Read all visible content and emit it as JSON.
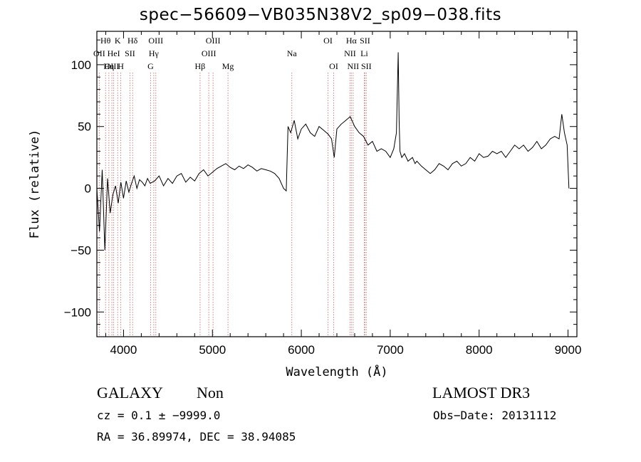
{
  "chart_data": {
    "type": "line",
    "title": "spec−56609−VB035N38V2_sp09−038.fits",
    "xlabel": "Wavelength (Å)",
    "ylabel": "Flux (relative)",
    "xlim": [
      3700,
      9100
    ],
    "ylim": [
      -120,
      127
    ],
    "xticks": [
      4000,
      5000,
      6000,
      7000,
      8000,
      9000
    ],
    "yticks": [
      -100,
      -50,
      0,
      50,
      100
    ],
    "ytick_labels": [
      "−100",
      "−50",
      "0",
      "50",
      "100"
    ],
    "series": [
      {
        "name": "spectrum",
        "x": [
          3700,
          3730,
          3760,
          3790,
          3820,
          3850,
          3880,
          3910,
          3940,
          3970,
          4000,
          4030,
          4060,
          4090,
          4120,
          4150,
          4180,
          4210,
          4240,
          4270,
          4300,
          4350,
          4400,
          4450,
          4500,
          4550,
          4600,
          4650,
          4700,
          4750,
          4800,
          4850,
          4900,
          4950,
          5000,
          5050,
          5100,
          5150,
          5200,
          5250,
          5300,
          5350,
          5400,
          5450,
          5500,
          5550,
          5600,
          5650,
          5700,
          5750,
          5800,
          5830,
          5850,
          5880,
          5920,
          5960,
          6000,
          6050,
          6100,
          6150,
          6200,
          6250,
          6300,
          6340,
          6370,
          6400,
          6450,
          6500,
          6550,
          6600,
          6650,
          6700,
          6750,
          6800,
          6850,
          6900,
          6950,
          7000,
          7040,
          7070,
          7090,
          7100,
          7110,
          7130,
          7160,
          7200,
          7250,
          7280,
          7300,
          7350,
          7400,
          7450,
          7500,
          7550,
          7600,
          7650,
          7700,
          7750,
          7800,
          7850,
          7900,
          7950,
          8000,
          8050,
          8100,
          8150,
          8200,
          8250,
          8300,
          8350,
          8400,
          8450,
          8500,
          8550,
          8600,
          8650,
          8700,
          8750,
          8800,
          8850,
          8900,
          8930,
          8960,
          8990,
          9010
        ],
        "y": [
          0,
          -35,
          15,
          -50,
          8,
          -20,
          -5,
          2,
          -12,
          5,
          -8,
          6,
          -3,
          4,
          10,
          0,
          7,
          5,
          2,
          8,
          4,
          6,
          10,
          2,
          8,
          4,
          10,
          12,
          5,
          9,
          6,
          12,
          15,
          10,
          13,
          16,
          18,
          20,
          17,
          15,
          18,
          16,
          19,
          17,
          14,
          16,
          15,
          14,
          12,
          8,
          0,
          -2,
          50,
          45,
          55,
          40,
          48,
          52,
          45,
          42,
          50,
          47,
          44,
          40,
          25,
          48,
          52,
          55,
          58,
          50,
          45,
          42,
          35,
          38,
          30,
          32,
          30,
          25,
          32,
          45,
          110,
          55,
          30,
          25,
          28,
          22,
          25,
          20,
          22,
          18,
          15,
          12,
          15,
          20,
          18,
          15,
          20,
          22,
          18,
          20,
          25,
          22,
          28,
          25,
          26,
          30,
          28,
          30,
          25,
          30,
          35,
          32,
          35,
          30,
          33,
          38,
          32,
          35,
          40,
          42,
          40,
          60,
          45,
          35,
          0
        ]
      }
    ],
    "emission_lines": [
      {
        "label": "OII",
        "x": 3727,
        "row": 1
      },
      {
        "label": "Hθ",
        "x": 3798,
        "row": 0
      },
      {
        "label": "OIII",
        "x": 3869,
        "row": 2
      },
      {
        "label": "HeI",
        "x": 3889,
        "row": 1
      },
      {
        "label": "Hη",
        "x": 3835,
        "row": 2
      },
      {
        "label": "K",
        "x": 3934,
        "row": 0
      },
      {
        "label": "H",
        "x": 3969,
        "row": 2
      },
      {
        "label": "Hδ",
        "x": 4102,
        "row": 0
      },
      {
        "label": "SII",
        "x": 4072,
        "row": 1
      },
      {
        "label": "OIII",
        "x": 4363,
        "row": 0
      },
      {
        "label": "Hγ",
        "x": 4340,
        "row": 1
      },
      {
        "label": "G",
        "x": 4305,
        "row": 2
      },
      {
        "label": "OIII",
        "x": 5007,
        "row": 0
      },
      {
        "label": "OIII",
        "x": 4959,
        "row": 1
      },
      {
        "label": "Hβ",
        "x": 4861,
        "row": 2
      },
      {
        "label": "Mg",
        "x": 5175,
        "row": 2
      },
      {
        "label": "Na",
        "x": 5893,
        "row": 1
      },
      {
        "label": "OI",
        "x": 6300,
        "row": 0
      },
      {
        "label": "OI",
        "x": 6364,
        "row": 2
      },
      {
        "label": "Hα",
        "x": 6563,
        "row": 0
      },
      {
        "label": "NII",
        "x": 6548,
        "row": 1
      },
      {
        "label": "NII",
        "x": 6583,
        "row": 2
      },
      {
        "label": "SII",
        "x": 6716,
        "row": 0
      },
      {
        "label": "Li",
        "x": 6708,
        "row": 1
      },
      {
        "label": "SII",
        "x": 6731,
        "row": 2
      }
    ]
  },
  "info": {
    "class_label": "GALAXY",
    "subclass": "Non",
    "survey": "LAMOST DR3",
    "cz_line": "cz = 0.1 ± −9999.0",
    "obs_date": "Obs−Date: 20131112",
    "coords": "RA =  36.89974, DEC =  38.94085"
  },
  "colors": {
    "axis": "#000000",
    "line": "#000000",
    "marker": "#d08080"
  }
}
